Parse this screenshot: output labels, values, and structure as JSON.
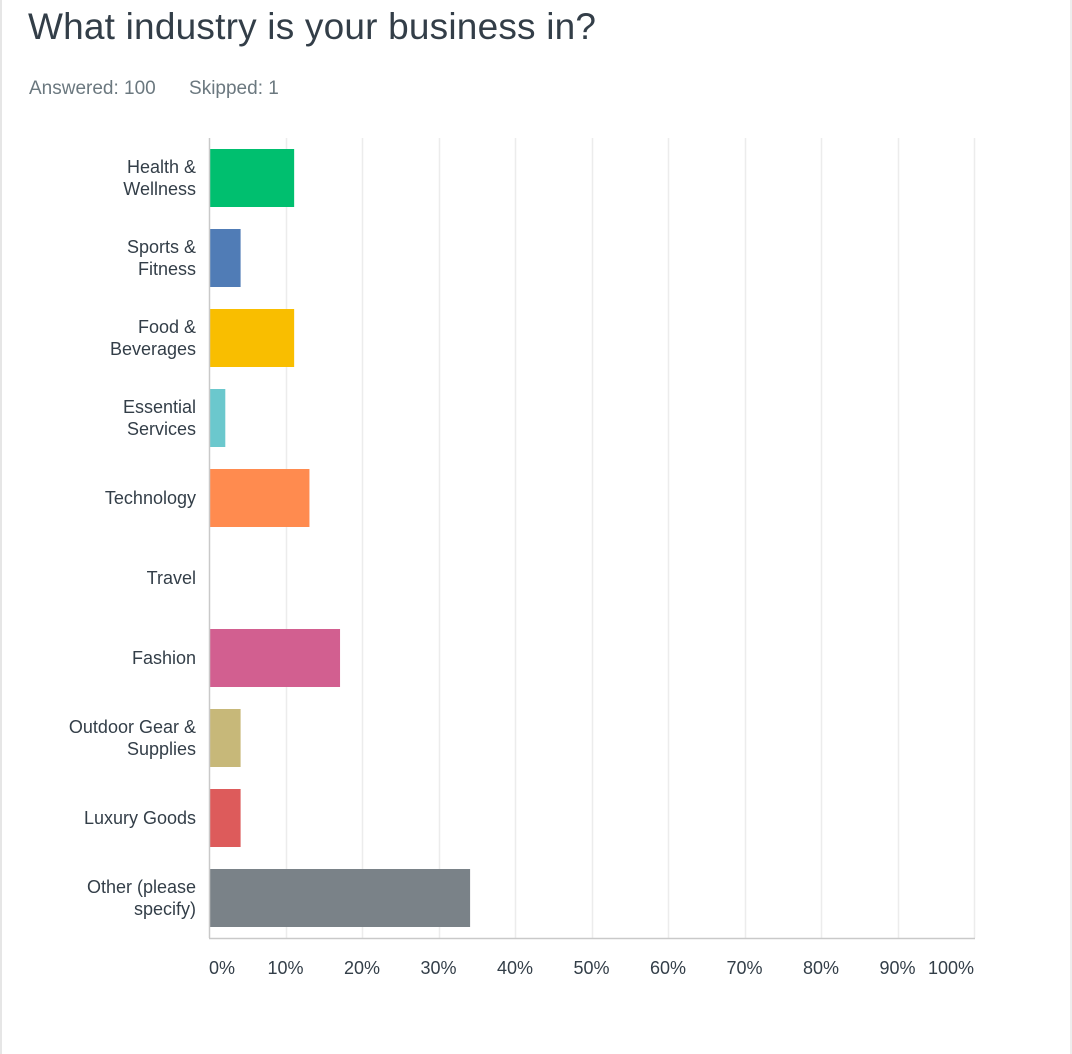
{
  "question": {
    "title": "What industry is your business in?",
    "answered_label": "Answered: 100",
    "skipped_label": "Skipped: 1"
  },
  "colors": {
    "gridline": "#ececec",
    "axis": "#c9c9c9",
    "text": "#333e48",
    "muted_text": "#6b787f"
  },
  "chart_data": {
    "type": "bar",
    "orientation": "horizontal",
    "categories": [
      [
        "Health &",
        "Wellness"
      ],
      [
        "Sports &",
        "Fitness"
      ],
      [
        "Food &",
        "Beverages"
      ],
      [
        "Essential",
        "Services"
      ],
      [
        "Technology"
      ],
      [
        "Travel"
      ],
      [
        "Fashion"
      ],
      [
        "Outdoor Gear &",
        "Supplies"
      ],
      [
        "Luxury Goods"
      ],
      [
        "Other (please",
        "specify)"
      ]
    ],
    "values": [
      11,
      4,
      11,
      2,
      13,
      0,
      17,
      4,
      4,
      34
    ],
    "colors": [
      "#00bf6f",
      "#507cb6",
      "#f9be00",
      "#6bc8cd",
      "#ff8b4f",
      "#7d5e90",
      "#d25f90",
      "#c7b879",
      "#dd5b5b",
      "#7a8288"
    ],
    "xlim": [
      0,
      100
    ],
    "x_ticks": [
      "0%",
      "10%",
      "20%",
      "30%",
      "40%",
      "50%",
      "60%",
      "70%",
      "80%",
      "90%",
      "100%"
    ],
    "grid": true,
    "unit": "%"
  }
}
